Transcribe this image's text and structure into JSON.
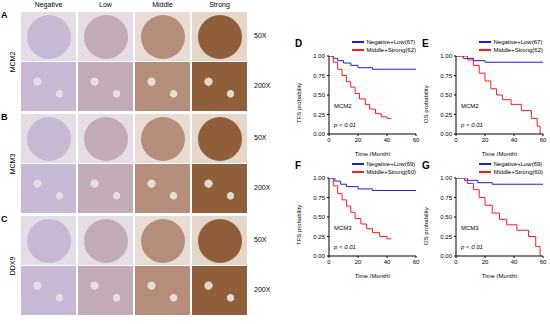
{
  "figure": {
    "columns": [
      "Negative",
      "Low",
      "Middle",
      "Strong"
    ],
    "magnifications": [
      "50X",
      "200X"
    ],
    "rows": [
      {
        "panel": "A",
        "label": "MCM2"
      },
      {
        "panel": "B",
        "label": "MCM3"
      },
      {
        "panel": "C",
        "label": "DDX9"
      }
    ]
  },
  "chart_data": [
    {
      "type": "line",
      "panel": "D",
      "title": "MCM2",
      "x_label": "Time (Month)",
      "y_label": "TFS probability",
      "annotation": "p < 0.01",
      "xlim": [
        0,
        60
      ],
      "ylim": [
        0,
        1
      ],
      "xticks": [
        0,
        20,
        40,
        60
      ],
      "yticks": [
        {
          "value": 0,
          "label": "0.00"
        },
        {
          "value": 0.25,
          "label": "0.25"
        },
        {
          "value": 0.5,
          "label": "0.50"
        },
        {
          "value": 0.75,
          "label": "0.75"
        },
        {
          "value": 1,
          "label": "1.00"
        }
      ],
      "legend": "upper right",
      "line_style": "step",
      "series": [
        {
          "name": "Negative+Low(67)",
          "color": "#1a1aff",
          "x": [
            0,
            3,
            6,
            10,
            15,
            20,
            30,
            60
          ],
          "values": [
            1,
            0.97,
            0.94,
            0.91,
            0.88,
            0.85,
            0.83,
            0.83
          ]
        },
        {
          "name": "Middle+Strong(62)",
          "color": "#ff1a1a",
          "x": [
            0,
            3,
            6,
            9,
            12,
            15,
            18,
            21,
            25,
            28,
            32,
            36,
            40,
            43
          ],
          "values": [
            1,
            0.92,
            0.83,
            0.75,
            0.67,
            0.6,
            0.52,
            0.45,
            0.38,
            0.32,
            0.26,
            0.22,
            0.2,
            0.2
          ]
        }
      ]
    },
    {
      "type": "line",
      "panel": "E",
      "title": "MCM2",
      "x_label": "Time (Month)",
      "y_label": "OS probability",
      "annotation": "p < 0.01",
      "xlim": [
        0,
        60
      ],
      "ylim": [
        0,
        1
      ],
      "xticks": [
        0,
        20,
        40,
        60
      ],
      "yticks": [
        {
          "value": 0,
          "label": "0.00"
        },
        {
          "value": 0.25,
          "label": "0.25"
        },
        {
          "value": 0.5,
          "label": "0.50"
        },
        {
          "value": 0.75,
          "label": "0.75"
        },
        {
          "value": 1,
          "label": "1.00"
        }
      ],
      "legend": "upper right",
      "line_style": "step",
      "series": [
        {
          "name": "Negative+Low(67)",
          "color": "#1a1aff",
          "x": [
            0,
            5,
            12,
            20,
            60
          ],
          "values": [
            1,
            0.97,
            0.94,
            0.92,
            0.92
          ]
        },
        {
          "name": "Middle+Strong(62)",
          "color": "#ff1a1a",
          "x": [
            0,
            8,
            12,
            16,
            20,
            24,
            28,
            32,
            38,
            45,
            52,
            56,
            58
          ],
          "values": [
            1,
            0.95,
            0.88,
            0.78,
            0.68,
            0.58,
            0.5,
            0.44,
            0.38,
            0.3,
            0.2,
            0.1,
            0
          ]
        }
      ]
    },
    {
      "type": "line",
      "panel": "F",
      "title": "MCM3",
      "x_label": "Time (Month)",
      "y_label": "TFS probability",
      "annotation": "p < 0.01",
      "xlim": [
        0,
        60
      ],
      "ylim": [
        0,
        1
      ],
      "xticks": [
        0,
        20,
        40,
        60
      ],
      "yticks": [
        {
          "value": 0,
          "label": "0.00"
        },
        {
          "value": 0.25,
          "label": "0.25"
        },
        {
          "value": 0.5,
          "label": "0.50"
        },
        {
          "value": 0.75,
          "label": "0.75"
        },
        {
          "value": 1,
          "label": "1.00"
        }
      ],
      "legend": "upper right",
      "line_style": "step",
      "series": [
        {
          "name": "Negative+Low(69)",
          "color": "#1a1aff",
          "x": [
            0,
            4,
            8,
            12,
            20,
            30,
            60
          ],
          "values": [
            1,
            0.96,
            0.92,
            0.89,
            0.86,
            0.84,
            0.84
          ]
        },
        {
          "name": "Middle+Strong(60)",
          "color": "#ff1a1a",
          "x": [
            0,
            3,
            6,
            9,
            12,
            15,
            18,
            22,
            26,
            30,
            35,
            40,
            43
          ],
          "values": [
            1,
            0.9,
            0.8,
            0.72,
            0.64,
            0.56,
            0.48,
            0.41,
            0.35,
            0.3,
            0.25,
            0.22,
            0.22
          ]
        }
      ]
    },
    {
      "type": "line",
      "panel": "G",
      "title": "MCM3",
      "x_label": "Time (Month)",
      "y_label": "OS probability",
      "annotation": "p < 0.01",
      "xlim": [
        0,
        60
      ],
      "ylim": [
        0,
        1
      ],
      "xticks": [
        0,
        20,
        40,
        60
      ],
      "yticks": [
        {
          "value": 0,
          "label": "0.00"
        },
        {
          "value": 0.25,
          "label": "0.25"
        },
        {
          "value": 0.5,
          "label": "0.50"
        },
        {
          "value": 0.75,
          "label": "0.75"
        },
        {
          "value": 1,
          "label": "1.00"
        }
      ],
      "legend": "upper right",
      "line_style": "step",
      "series": [
        {
          "name": "Negative+Low(69)",
          "color": "#1a1aff",
          "x": [
            0,
            6,
            15,
            25,
            60
          ],
          "values": [
            1,
            0.97,
            0.94,
            0.92,
            0.92
          ]
        },
        {
          "name": "Middle+Strong(60)",
          "color": "#ff1a1a",
          "x": [
            0,
            8,
            12,
            16,
            20,
            25,
            30,
            35,
            42,
            50,
            55,
            58
          ],
          "values": [
            1,
            0.93,
            0.85,
            0.75,
            0.65,
            0.55,
            0.47,
            0.4,
            0.33,
            0.25,
            0.12,
            0
          ]
        }
      ]
    }
  ]
}
